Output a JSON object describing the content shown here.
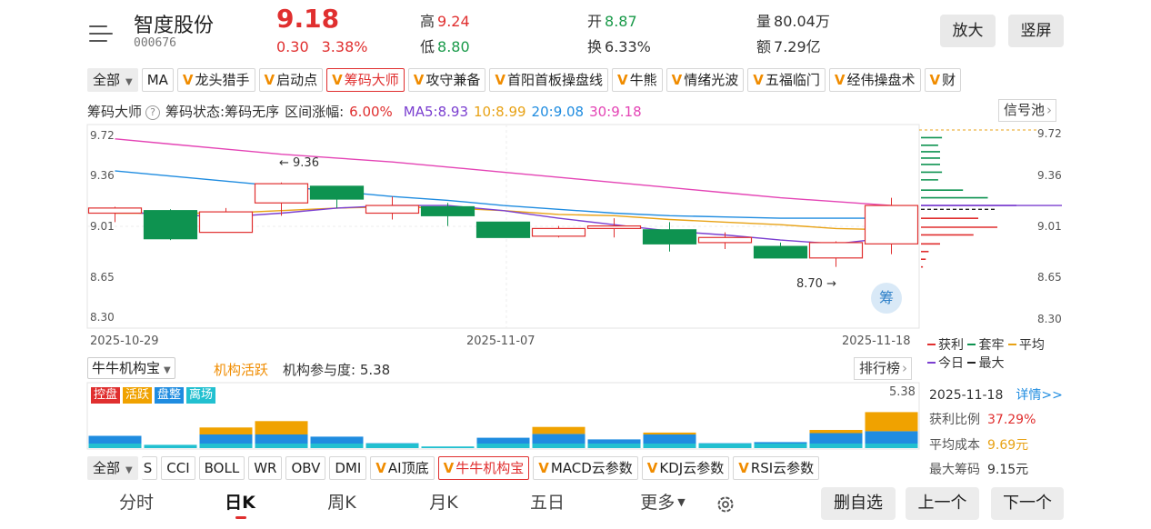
{
  "header": {
    "name": "智度股份",
    "code": "000676",
    "price": "9.18",
    "change": "0.30",
    "change_pct": "3.38%",
    "high_label": "高",
    "high": "9.24",
    "low_label": "低",
    "low": "8.80",
    "open_label": "开",
    "open": "8.87",
    "turnover_label": "换",
    "turnover": "6.33%",
    "volume_label": "量",
    "volume": "80.04万",
    "amount_label": "额",
    "amount": "7.29亿",
    "zoom_button": "放大",
    "portrait_button": "竖屏"
  },
  "indicator_tabs": [
    "全部",
    "MA",
    "龙头猎手",
    "启动点",
    "筹码大师",
    "攻守兼备",
    "首阳首板操盘线",
    "牛熊",
    "情绪光波",
    "五福临门",
    "经伟操盘术",
    "财"
  ],
  "info_line": {
    "name": "筹码大师",
    "status": "筹码状态:筹码无序",
    "range": "区间涨幅:",
    "range_value": "6.00%",
    "ma5": "MA5:8.93",
    "ma10": "10:8.99",
    "ma20": "20:9.08",
    "ma30": "30:9.18",
    "signal_button": "信号池"
  },
  "price_axis": [
    "9.72",
    "9.36",
    "9.01",
    "8.65",
    "8.30"
  ],
  "date_axis": [
    "2025-10-29",
    "2025-11-07",
    "2025-11-18"
  ],
  "annotations": {
    "high": "← 9.36",
    "low": "8.70 →"
  },
  "chou_badge": "筹",
  "chip_legend": [
    "获利",
    "套牢",
    "平均",
    "今日",
    "最大"
  ],
  "colors": {
    "up": "#e02f2f",
    "down": "#0e9350",
    "ma5": "#7b3fd0",
    "ma10": "#e8a215",
    "ma20": "#1f8ce0",
    "ma30": "#e444b5"
  },
  "chart_data": {
    "type": "candlestick",
    "ylim": [
      8.3,
      9.72
    ],
    "candles": [
      {
        "o": 9.12,
        "c": 9.16,
        "h": 9.17,
        "l": 9.05
      },
      {
        "o": 9.14,
        "c": 8.92,
        "h": 9.15,
        "l": 8.91
      },
      {
        "o": 8.97,
        "c": 9.13,
        "h": 9.16,
        "l": 8.97
      },
      {
        "o": 9.2,
        "c": 9.35,
        "h": 9.36,
        "l": 9.1
      },
      {
        "o": 9.33,
        "c": 9.23,
        "h": 9.33,
        "l": 9.16
      },
      {
        "o": 9.12,
        "c": 9.18,
        "h": 9.25,
        "l": 9.07
      },
      {
        "o": 9.17,
        "c": 9.1,
        "h": 9.2,
        "l": 9.02
      },
      {
        "o": 9.05,
        "c": 8.93,
        "h": 9.05,
        "l": 8.93
      },
      {
        "o": 8.94,
        "c": 9.0,
        "h": 9.02,
        "l": 8.93
      },
      {
        "o": 9.0,
        "c": 9.02,
        "h": 9.08,
        "l": 8.93
      },
      {
        "o": 8.99,
        "c": 8.88,
        "h": 9.05,
        "l": 8.82
      },
      {
        "o": 8.89,
        "c": 8.93,
        "h": 8.97,
        "l": 8.84
      },
      {
        "o": 8.86,
        "c": 8.77,
        "h": 8.89,
        "l": 8.77
      },
      {
        "o": 8.77,
        "c": 8.89,
        "h": 8.9,
        "l": 8.7
      },
      {
        "o": 8.88,
        "c": 9.18,
        "h": 9.24,
        "l": 8.8
      }
    ],
    "ma5": [
      9.13,
      9.11,
      9.09,
      9.12,
      9.16,
      9.18,
      9.18,
      9.14,
      9.08,
      9.03,
      8.98,
      8.95,
      8.91,
      8.88,
      8.93
    ],
    "ma10": [
      9.12,
      9.12,
      9.12,
      9.14,
      9.16,
      9.17,
      9.16,
      9.14,
      9.11,
      9.1,
      9.07,
      9.05,
      9.03,
      9.0,
      8.99
    ],
    "ma20": [
      9.45,
      9.41,
      9.37,
      9.33,
      9.29,
      9.25,
      9.22,
      9.18,
      9.15,
      9.12,
      9.1,
      9.09,
      9.08,
      9.08,
      9.08
    ],
    "ma30": [
      9.7,
      9.66,
      9.62,
      9.58,
      9.55,
      9.52,
      9.48,
      9.44,
      9.4,
      9.36,
      9.32,
      9.28,
      9.24,
      9.21,
      9.18
    ]
  },
  "chips": {
    "lines": [
      {
        "p": 9.71,
        "w": 0.22,
        "c": "#0e9350"
      },
      {
        "p": 9.65,
        "w": 0.18,
        "c": "#0e9350"
      },
      {
        "p": 9.6,
        "w": 0.2,
        "c": "#0e9350"
      },
      {
        "p": 9.55,
        "w": 0.2,
        "c": "#0e9350"
      },
      {
        "p": 9.5,
        "w": 0.2,
        "c": "#0e9350"
      },
      {
        "p": 9.44,
        "w": 0.22,
        "c": "#0e9350"
      },
      {
        "p": 9.38,
        "w": 0.18,
        "c": "#0e9350"
      },
      {
        "p": 9.3,
        "w": 0.44,
        "c": "#0e9350"
      },
      {
        "p": 9.24,
        "w": 0.7,
        "c": "#0e9350"
      },
      {
        "p": 9.18,
        "w": 1.0,
        "c": "#7b3fd0"
      },
      {
        "p": 9.15,
        "w": 0.8,
        "c": "#222"
      },
      {
        "p": 9.08,
        "w": 0.6,
        "c": "#e02f2f"
      },
      {
        "p": 9.01,
        "w": 0.8,
        "c": "#e02f2f"
      },
      {
        "p": 8.95,
        "w": 0.55,
        "c": "#e02f2f"
      },
      {
        "p": 8.88,
        "w": 0.2,
        "c": "#e02f2f"
      },
      {
        "p": 8.82,
        "w": 0.08,
        "c": "#e02f2f"
      },
      {
        "p": 8.76,
        "w": 0.05,
        "c": "#e02f2f"
      },
      {
        "p": 8.7,
        "w": 0.02,
        "c": "#e02f2f"
      }
    ],
    "avg": 9.69
  },
  "institution": {
    "selector": "牛牛机构宝",
    "status": "机构活跃",
    "participation": "机构参与度: 5.38",
    "rank_button": "排行榜",
    "tags": [
      {
        "label": "控盘",
        "color": "#e02f2f"
      },
      {
        "label": "活跃",
        "color": "#f0a200"
      },
      {
        "label": "盘整",
        "color": "#1f8ce0"
      },
      {
        "label": "离场",
        "color": "#22c0d0"
      }
    ],
    "value_label": "5.38",
    "bars_base": [
      0.45,
      0.12,
      0.5,
      0.5,
      0.42,
      0.18,
      0.06,
      0.38,
      0.52,
      0.32,
      0.5,
      0.18,
      0.22,
      0.55,
      0.62
    ],
    "bars_active": [
      0,
      0,
      0.22,
      0.42,
      0,
      0,
      0,
      0,
      0.22,
      0,
      0.06,
      0,
      0,
      0.1,
      0.6
    ]
  },
  "chip_info": {
    "date": "2025-11-18",
    "detail": "详情>>",
    "profit_label": "获利比例",
    "profit": "37.29%",
    "avg_label": "平均成本",
    "avg": "9.69元",
    "max_label": "最大筹码",
    "max": "9.15元"
  },
  "bottom_tabs": [
    "全部",
    "S",
    "CCI",
    "BOLL",
    "WR",
    "OBV",
    "DMI",
    "AI顶底",
    "牛牛机构宝",
    "MACD云参数",
    "KDJ云参数",
    "RSI云参数"
  ],
  "period_nav": [
    "分时",
    "日K",
    "周K",
    "月K",
    "五日",
    "更多"
  ],
  "actions": {
    "remove": "删自选",
    "prev": "上一个",
    "next": "下一个"
  }
}
